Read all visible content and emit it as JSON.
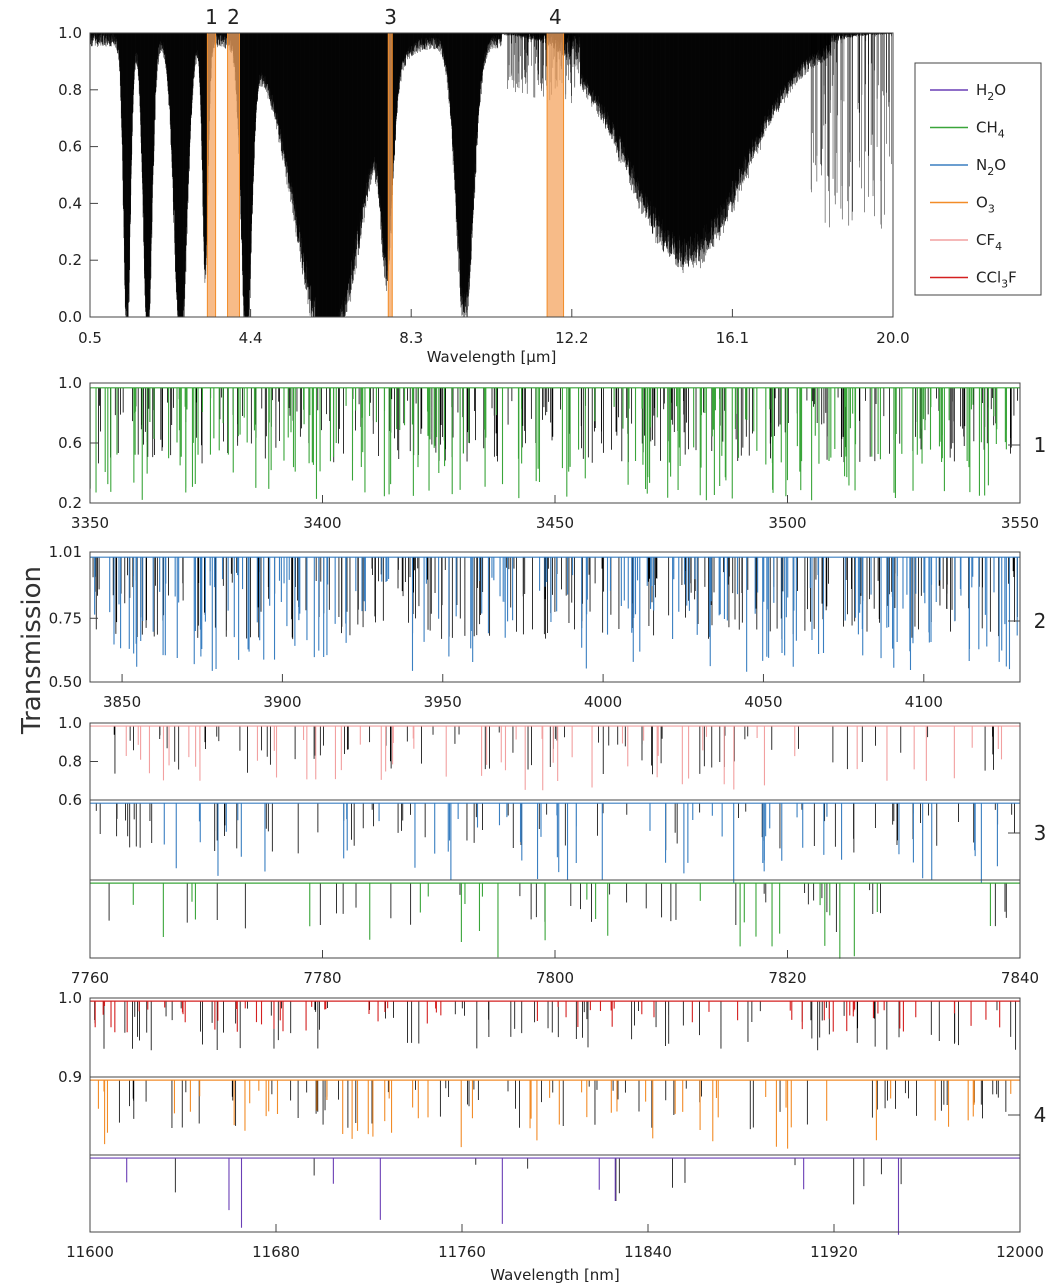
{
  "chart_data": {
    "type": "line",
    "ylabel": "Transmission",
    "overview": {
      "xlabel_pre": "Wavelength [",
      "xlabel_unit": "μm",
      "xlabel_post": "]",
      "xlim": [
        0.5,
        20.0
      ],
      "ylim": [
        0.0,
        1.0
      ],
      "x_ticks": [
        "0.5",
        "4.4",
        "8.3",
        "12.2",
        "16.1",
        "20.0"
      ],
      "x_tick_values": [
        0.5,
        4.4,
        8.3,
        12.2,
        16.1,
        20.0
      ],
      "y_ticks": [
        "0.0",
        "0.2",
        "0.4",
        "0.6",
        "0.8",
        "1.0"
      ],
      "y_tick_values": [
        0.0,
        0.2,
        0.4,
        0.6,
        0.8,
        1.0
      ],
      "bands": [
        {
          "label": "1",
          "x0": 3.35,
          "x1": 3.55
        },
        {
          "label": "2",
          "x0": 3.84,
          "x1": 4.13
        },
        {
          "label": "3",
          "x0": 7.76,
          "x1": 7.84
        },
        {
          "label": "4",
          "x0": 11.6,
          "x1": 12.0
        }
      ],
      "band_color": "#f4a460",
      "absorption_features": [
        {
          "x": 1.4,
          "depth": 0.95,
          "width": 0.12
        },
        {
          "x": 1.9,
          "depth": 0.99,
          "width": 0.15
        },
        {
          "x": 2.7,
          "depth": 1.0,
          "width": 0.22
        },
        {
          "x": 3.3,
          "depth": 0.75,
          "width": 0.1
        },
        {
          "x": 4.3,
          "depth": 1.0,
          "width": 0.18
        },
        {
          "x": 6.3,
          "depth": 1.0,
          "width": 1.1
        },
        {
          "x": 7.7,
          "depth": 0.7,
          "width": 0.2
        },
        {
          "x": 9.6,
          "depth": 0.9,
          "width": 0.3
        },
        {
          "x": 15.0,
          "depth": 0.7,
          "width": 2.0
        }
      ]
    },
    "legend": {
      "position": "right",
      "entries": [
        {
          "species": "H",
          "sub": "2",
          "tail": "O",
          "color": "#6a3fb5"
        },
        {
          "species": "CH",
          "sub": "4",
          "tail": "",
          "color": "#3aa53a"
        },
        {
          "species": "N",
          "sub": "2",
          "tail": "O",
          "color": "#3a7fc1"
        },
        {
          "species": "O",
          "sub": "3",
          "tail": "",
          "color": "#f28c28"
        },
        {
          "species": "CF",
          "sub": "4",
          "tail": "",
          "color": "#f2a0a0"
        },
        {
          "species": "CCl",
          "sub": "3",
          "tail": "F",
          "color": "#d42020"
        }
      ]
    },
    "panels": [
      {
        "label": "1",
        "xlim": [
          3350,
          3550
        ],
        "x_ticks": [
          "3350",
          "3400",
          "3450",
          "3500",
          "3550"
        ],
        "x_tick_values": [
          3350,
          3400,
          3450,
          3500,
          3550
        ],
        "subpanels": [
          {
            "ylim": [
              0.2,
              1.0
            ],
            "y_ticks": [
              "0.2",
              "0.6",
              "1.0"
            ],
            "y_tick_values": [
              0.2,
              0.6,
              1.0
            ],
            "species_color": "#3aa53a",
            "n_lines": 220,
            "max_depth": 0.75
          }
        ]
      },
      {
        "label": "2",
        "xlim": [
          3840,
          4130
        ],
        "x_ticks": [
          "3850",
          "3900",
          "3950",
          "4000",
          "4050",
          "4100"
        ],
        "x_tick_values": [
          3850,
          3900,
          3950,
          4000,
          4050,
          4100
        ],
        "subpanels": [
          {
            "ylim": [
              0.5,
              1.01
            ],
            "y_ticks": [
              "0.50",
              "0.75",
              "1.01"
            ],
            "y_tick_values": [
              0.5,
              0.75,
              1.01
            ],
            "species_color": "#3a7fc1",
            "n_lines": 200,
            "max_depth": 0.45
          }
        ]
      },
      {
        "label": "3",
        "xlim": [
          7760,
          7840
        ],
        "x_ticks": [
          "7760",
          "7780",
          "7800",
          "7820",
          "7840"
        ],
        "x_tick_values": [
          7760,
          7780,
          7800,
          7820,
          7840
        ],
        "subpanels": [
          {
            "ylim": [
              0.6,
              1.0
            ],
            "y_ticks": [
              "0.6",
              "0.8",
              "1.0"
            ],
            "y_tick_values": [
              0.6,
              0.8,
              1.0
            ],
            "species_color": "#f2a0a0",
            "n_lines": 60,
            "max_depth": 0.35
          },
          {
            "ylim": [
              0.6,
              1.0
            ],
            "y_ticks": [],
            "y_tick_values": [],
            "species_color": "#3a7fc1",
            "n_lines": 60,
            "max_depth": 0.4
          },
          {
            "ylim": [
              0.6,
              1.0
            ],
            "y_ticks": [],
            "y_tick_values": [],
            "species_color": "#3aa53a",
            "n_lines": 30,
            "max_depth": 0.4
          }
        ]
      },
      {
        "label": "4",
        "xlim": [
          11600,
          12000
        ],
        "x_ticks": [
          "11600",
          "11680",
          "11760",
          "11840",
          "11920",
          "12000"
        ],
        "x_tick_values": [
          11600,
          11680,
          11760,
          11840,
          11920,
          12000
        ],
        "xlabel_pre": "Wavelength [",
        "xlabel_unit": "nm",
        "xlabel_post": "]",
        "subpanels": [
          {
            "ylim": [
              0.9,
              1.0
            ],
            "y_ticks": [
              "0.9",
              "1.0"
            ],
            "y_tick_values": [
              0.9,
              1.0
            ],
            "species_color": "#d42020",
            "n_lines": 70,
            "max_depth": 0.04
          },
          {
            "ylim": [
              0.9,
              1.0
            ],
            "y_ticks": [],
            "y_tick_values": [],
            "species_color": "#f28c28",
            "n_lines": 60,
            "max_depth": 0.09
          },
          {
            "ylim": [
              0.9,
              1.0
            ],
            "y_ticks": [],
            "y_tick_values": [],
            "species_color": "#6a3fb5",
            "n_lines": 10,
            "max_depth": 0.1
          }
        ]
      }
    ]
  }
}
